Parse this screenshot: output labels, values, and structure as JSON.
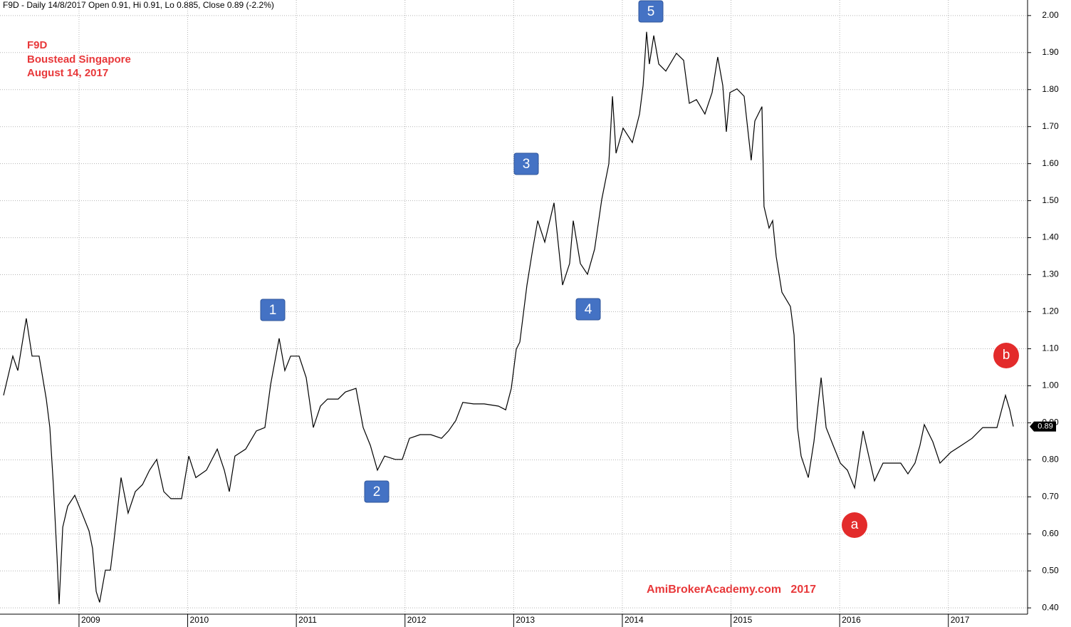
{
  "chart_data": {
    "type": "line",
    "header": "F9D - Daily 14/8/2017 Open 0.91, Hi 0.91, Lo 0.885, Close 0.89 (-2.2%)",
    "title_lines": [
      "F9D",
      "Boustead Singapore",
      "August 14, 2017"
    ],
    "watermark": "AmiBrokerAcademy.com   2017",
    "wave_labels": [
      "1",
      "2",
      "3",
      "4",
      "5"
    ],
    "corrective_labels": [
      "a",
      "b"
    ],
    "last_price_label": "0.89",
    "color": "#000000",
    "grid": true,
    "xlim": [
      2008.273,
      2017.729
    ],
    "xticks": [
      2009,
      2010,
      2011,
      2012,
      2013,
      2014,
      2015,
      2016,
      2017
    ],
    "ylim": [
      0.383,
      2.042
    ],
    "yticks": [
      {
        "value": 0.4,
        "label": "0.40"
      },
      {
        "value": 0.5,
        "label": "0.50"
      },
      {
        "value": 0.6,
        "label": "0.60"
      },
      {
        "value": 0.7,
        "label": "0.70"
      },
      {
        "value": 0.8,
        "label": "0.80"
      },
      {
        "value": 0.9,
        "label": "0.90"
      },
      {
        "value": 1.0,
        "label": "1.00"
      },
      {
        "value": 1.1,
        "label": "1.10"
      },
      {
        "value": 1.2,
        "label": "1.20"
      },
      {
        "value": 1.3,
        "label": "1.30"
      },
      {
        "value": 1.4,
        "label": "1.40"
      },
      {
        "value": 1.5,
        "label": "1.50"
      },
      {
        "value": 1.6,
        "label": "1.60"
      },
      {
        "value": 1.7,
        "label": "1.70"
      },
      {
        "value": 1.8,
        "label": "1.80"
      },
      {
        "value": 1.9,
        "label": "1.90"
      },
      {
        "value": 2.0,
        "label": "2.00"
      }
    ],
    "x": [
      2008.306,
      2008.391,
      2008.437,
      2008.515,
      2008.568,
      2008.633,
      2008.699,
      2008.732,
      2008.764,
      2008.797,
      2008.817,
      2008.85,
      2008.896,
      2008.961,
      2009.027,
      2009.092,
      2009.125,
      2009.158,
      2009.19,
      2009.243,
      2009.289,
      2009.321,
      2009.387,
      2009.452,
      2009.518,
      2009.584,
      2009.649,
      2009.715,
      2009.78,
      2009.846,
      2009.944,
      2010.01,
      2010.075,
      2010.173,
      2010.272,
      2010.337,
      2010.383,
      2010.435,
      2010.534,
      2010.632,
      2010.711,
      2010.763,
      2010.842,
      2010.894,
      2010.947,
      2011.025,
      2011.091,
      2011.156,
      2011.222,
      2011.287,
      2011.385,
      2011.451,
      2011.549,
      2011.615,
      2011.681,
      2011.746,
      2011.812,
      2011.91,
      2011.975,
      2012.041,
      2012.139,
      2012.237,
      2012.336,
      2012.401,
      2012.467,
      2012.532,
      2012.631,
      2012.729,
      2012.86,
      2012.926,
      2012.978,
      2013.024,
      2013.057,
      2013.122,
      2013.175,
      2013.221,
      2013.286,
      2013.371,
      2013.45,
      2013.515,
      2013.548,
      2013.614,
      2013.679,
      2013.745,
      2013.81,
      2013.876,
      2013.909,
      2013.942,
      2014.007,
      2014.092,
      2014.158,
      2014.191,
      2014.223,
      2014.249,
      2014.289,
      2014.335,
      2014.4,
      2014.498,
      2014.564,
      2014.616,
      2014.682,
      2014.76,
      2014.826,
      2014.878,
      2014.924,
      2014.957,
      2014.99,
      2015.055,
      2015.121,
      2015.186,
      2015.219,
      2015.285,
      2015.304,
      2015.35,
      2015.383,
      2015.416,
      2015.468,
      2015.547,
      2015.58,
      2015.612,
      2015.645,
      2015.711,
      2015.763,
      2015.829,
      2015.875,
      2015.94,
      2016.006,
      2016.071,
      2016.137,
      2016.215,
      2016.268,
      2016.32,
      2016.399,
      2016.497,
      2016.562,
      2016.628,
      2016.693,
      2016.739,
      2016.779,
      2016.857,
      2016.923,
      2017.021,
      2017.12,
      2017.218,
      2017.316,
      2017.447,
      2017.526,
      2017.565,
      2017.598
    ],
    "values": [
      0.974,
      1.08,
      1.041,
      1.182,
      1.08,
      1.08,
      0.964,
      0.887,
      0.733,
      0.541,
      0.41,
      0.618,
      0.675,
      0.704,
      0.656,
      0.608,
      0.56,
      0.444,
      0.415,
      0.502,
      0.502,
      0.579,
      0.752,
      0.656,
      0.714,
      0.733,
      0.772,
      0.801,
      0.714,
      0.695,
      0.695,
      0.81,
      0.752,
      0.772,
      0.829,
      0.772,
      0.714,
      0.81,
      0.829,
      0.878,
      0.887,
      1.003,
      1.128,
      1.041,
      1.08,
      1.08,
      1.022,
      0.887,
      0.945,
      0.964,
      0.964,
      0.983,
      0.993,
      0.887,
      0.839,
      0.772,
      0.81,
      0.801,
      0.801,
      0.858,
      0.868,
      0.868,
      0.858,
      0.878,
      0.906,
      0.955,
      0.951,
      0.951,
      0.945,
      0.935,
      0.993,
      1.099,
      1.118,
      1.272,
      1.369,
      1.446,
      1.388,
      1.494,
      1.272,
      1.33,
      1.446,
      1.33,
      1.301,
      1.369,
      1.503,
      1.6,
      1.782,
      1.628,
      1.696,
      1.657,
      1.734,
      1.811,
      1.956,
      1.869,
      1.946,
      1.869,
      1.85,
      1.898,
      1.879,
      1.763,
      1.773,
      1.734,
      1.792,
      1.888,
      1.811,
      1.686,
      1.792,
      1.802,
      1.782,
      1.609,
      1.715,
      1.754,
      1.484,
      1.426,
      1.446,
      1.349,
      1.253,
      1.214,
      1.137,
      0.887,
      0.81,
      0.752,
      0.849,
      1.022,
      0.887,
      0.839,
      0.791,
      0.772,
      0.724,
      0.878,
      0.81,
      0.743,
      0.791,
      0.791,
      0.791,
      0.762,
      0.791,
      0.839,
      0.895,
      0.849,
      0.791,
      0.82,
      0.839,
      0.858,
      0.887,
      0.887,
      0.974,
      0.935,
      0.89
    ]
  }
}
